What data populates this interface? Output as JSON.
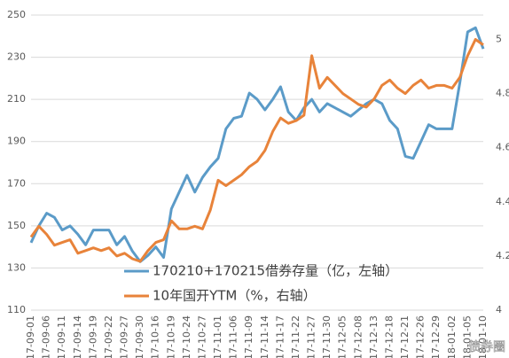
{
  "chart_data": {
    "type": "line",
    "categories": [
      "17-09-01",
      null,
      "17-09-06",
      null,
      "17-09-11",
      null,
      "17-09-14",
      null,
      "17-09-19",
      null,
      "17-09-22",
      null,
      "17-09-27",
      null,
      "17-09-30",
      null,
      "17-10-16",
      null,
      "17-10-19",
      null,
      "17-10-24",
      null,
      "17-10-27",
      null,
      "17-11-01",
      null,
      "17-11-06",
      null,
      "17-11-09",
      null,
      "17-11-14",
      null,
      "17-11-17",
      null,
      "17-11-22",
      null,
      "17-11-27",
      null,
      "17-11-30",
      null,
      "17-12-05",
      null,
      "17-12-08",
      null,
      "17-12-13",
      null,
      "17-12-18",
      null,
      "17-12-21",
      null,
      "17-12-26",
      null,
      "17-12-29",
      null,
      "18-01-02",
      null,
      "18-01-05",
      null,
      "18-01-10"
    ],
    "series": [
      {
        "name": "170210+170215借券存量（亿，左轴）",
        "color": "#5b9bc8",
        "values": [
          142,
          150,
          156,
          154,
          148,
          150,
          146,
          141,
          148,
          148,
          148,
          141,
          145,
          138,
          133,
          136,
          140,
          135,
          158,
          166,
          174,
          166,
          173,
          178,
          182,
          196,
          201,
          202,
          213,
          210,
          205,
          210,
          216,
          204,
          200,
          206,
          210,
          204,
          208,
          206,
          204,
          202,
          205,
          208,
          210,
          208,
          200,
          196,
          183,
          182,
          190,
          198,
          196,
          196,
          196,
          218,
          242,
          244,
          234
        ]
      },
      {
        "name": "10年国开YTM（%，右轴）",
        "color": "#e8833a",
        "axis": "y2",
        "values": [
          4.27,
          4.31,
          4.28,
          4.24,
          4.25,
          4.26,
          4.21,
          4.22,
          4.23,
          4.22,
          4.23,
          4.2,
          4.21,
          4.19,
          4.18,
          4.22,
          4.25,
          4.26,
          4.33,
          4.3,
          4.3,
          4.31,
          4.3,
          4.37,
          4.48,
          4.46,
          4.48,
          4.5,
          4.53,
          4.55,
          4.59,
          4.66,
          4.71,
          4.69,
          4.7,
          4.72,
          4.94,
          4.82,
          4.86,
          4.83,
          4.8,
          4.78,
          4.76,
          4.75,
          4.78,
          4.83,
          4.85,
          4.82,
          4.8,
          4.83,
          4.85,
          4.82,
          4.83,
          4.83,
          4.82,
          4.86,
          4.94,
          5.0,
          4.98
        ]
      }
    ],
    "ylim": [
      110,
      250
    ],
    "yticks": [
      110,
      130,
      150,
      170,
      190,
      210,
      230,
      250
    ],
    "y2lim": [
      4,
      5.09
    ],
    "y2ticks": [
      4,
      4.2,
      4.4,
      4.6,
      4.8,
      5
    ],
    "grid": true,
    "legend": "inside",
    "watermark": "债券圈"
  }
}
